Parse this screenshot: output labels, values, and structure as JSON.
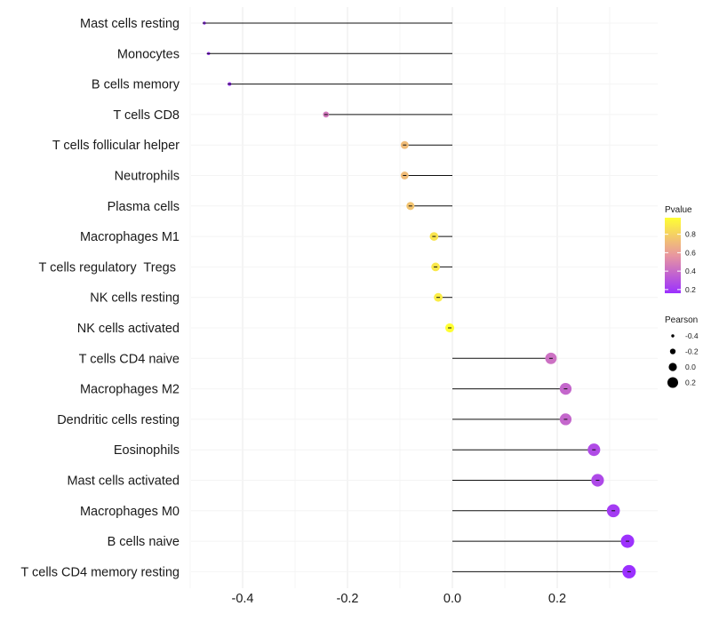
{
  "chart_data": {
    "type": "lollipop",
    "title": "",
    "xlabel": "",
    "ylabel": "",
    "xlim": [
      -0.5,
      0.37
    ],
    "x_ticks": [
      -0.4,
      -0.2,
      0.0,
      0.2
    ],
    "x_tick_labels": [
      "-0.4",
      "-0.2",
      "0.0",
      "0.2"
    ],
    "categories": [
      "Mast cells resting",
      "Monocytes",
      "B cells memory",
      "T cells CD8",
      "T cells follicular helper",
      "Neutrophils",
      "Plasma cells",
      "Macrophages M1",
      "T cells regulatory  Tregs ",
      "NK cells resting",
      "NK cells activated",
      "T cells CD4 naive",
      "Macrophages M2",
      "Dendritic cells resting",
      "Eosinophils",
      "Mast cells activated",
      "Macrophages M0",
      "B cells naive",
      "T cells CD4 memory resting"
    ],
    "pearson": [
      -0.473,
      -0.465,
      -0.425,
      -0.241,
      -0.091,
      -0.091,
      -0.08,
      -0.035,
      -0.032,
      -0.027,
      -0.005,
      0.188,
      0.216,
      0.216,
      0.27,
      0.277,
      0.307,
      0.334,
      0.337
    ],
    "pvalue": [
      0.04,
      0.05,
      0.07,
      0.45,
      0.72,
      0.72,
      0.75,
      0.88,
      0.89,
      0.91,
      0.98,
      0.42,
      0.38,
      0.38,
      0.27,
      0.26,
      0.21,
      0.17,
      0.16
    ],
    "legend_pvalue": {
      "title": "Pvalue",
      "ticks": [
        0.8,
        0.6,
        0.4,
        0.2
      ],
      "tick_labels": [
        "0.8",
        "0.6",
        "0.4",
        "0.2"
      ],
      "range": [
        0.16,
        0.98
      ],
      "colors": [
        "#ffff33",
        "#e896a0",
        "#9b30ff"
      ]
    },
    "legend_pearson": {
      "title": "Pearson",
      "values": [
        -0.4,
        -0.2,
        0.0,
        0.2
      ],
      "labels": [
        "-0.4",
        "-0.2",
        "0.0",
        "0.2"
      ]
    },
    "grid": true
  }
}
